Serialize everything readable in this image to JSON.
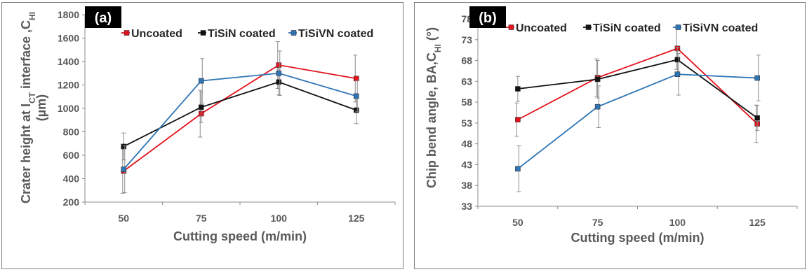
{
  "chart_data": [
    {
      "type": "line",
      "panel_label": "(a)",
      "x": [
        50,
        75,
        100,
        125
      ],
      "xlabel": "Cutting speed (m/min)",
      "ylabel_main": "Crater height at I",
      "ylabel_sub": "CT",
      "ylabel_tail": " interface ,C",
      "ylabel_sub2": "HI",
      "ylabel_line2": "(µm)",
      "ylim": [
        200,
        1800
      ],
      "yticks": [
        "200",
        "400",
        "600",
        "800",
        "1000",
        "1200",
        "1400",
        "1600",
        "1800"
      ],
      "xticks": [
        "50",
        "75",
        "100",
        "125"
      ],
      "grid": false,
      "legend_position": "top",
      "series": [
        {
          "name": "Uncoated",
          "color": "#e3121b",
          "values": [
            465,
            955,
            1370,
            1255
          ],
          "errors": [
            190,
            200,
            200,
            200
          ]
        },
        {
          "name": "TiSiN coated",
          "color": "#111111",
          "values": [
            675,
            1010,
            1225,
            985
          ],
          "errors": [
            115,
            130,
            110,
            115
          ]
        },
        {
          "name": "TiSiVN coated",
          "color": "#2e75b6",
          "values": [
            480,
            1235,
            1300,
            1105
          ],
          "errors": [
            200,
            190,
            190,
            130
          ]
        }
      ]
    },
    {
      "type": "line",
      "panel_label": "(b)",
      "x": [
        50,
        75,
        100,
        125
      ],
      "xlabel": "Cutting speed (m/min)",
      "ylabel_main": "Chip bend angle, BA,C",
      "ylabel_sub": "HI",
      "ylabel_tail": "",
      "ylabel_sub2": "",
      "ylabel_line2": "(°)",
      "ylim": [
        33,
        78
      ],
      "yticks": [
        "33",
        "38",
        "43",
        "48",
        "53",
        "58",
        "63",
        "68",
        "73",
        "78"
      ],
      "xticks": [
        "50",
        "75",
        "100",
        "125"
      ],
      "grid": false,
      "legend_position": "top",
      "series": [
        {
          "name": "Uncoated",
          "color": "#e3121b",
          "values": [
            53.8,
            63.9,
            70.9,
            52.8
          ],
          "errors": [
            4,
            4.5,
            5,
            4.5
          ]
        },
        {
          "name": "TiSiN coated",
          "color": "#111111",
          "values": [
            61.2,
            63.5,
            68.2,
            54.2
          ],
          "errors": [
            3,
            4.5,
            3,
            3
          ]
        },
        {
          "name": "TiSiVN coated",
          "color": "#2e75b6",
          "values": [
            42,
            56.9,
            64.7,
            63.8
          ],
          "errors": [
            5.5,
            5,
            5,
            5.5
          ]
        }
      ]
    }
  ]
}
